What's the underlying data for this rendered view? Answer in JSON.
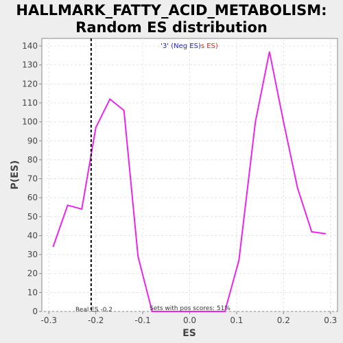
{
  "chart_data": {
    "type": "line",
    "title_line1": "HALLMARK_FATTY_ACID_METABOLISM:",
    "title_line2": "Random ES distribution",
    "xlabel": "ES",
    "ylabel": "P(ES)",
    "xlim": [
      -0.315,
      0.315
    ],
    "ylim": [
      0,
      144
    ],
    "x_ticks": [
      -0.3,
      -0.2,
      -0.1,
      0.0,
      0.1,
      0.2,
      0.3
    ],
    "x_tick_labels": [
      "-0.3",
      "-0.2",
      "-0.1",
      "0.0",
      "0.1",
      "0.2",
      "0.3"
    ],
    "y_ticks": [
      0,
      10,
      20,
      30,
      40,
      50,
      60,
      70,
      80,
      90,
      100,
      110,
      120,
      130,
      140
    ],
    "grid": true,
    "series": [
      {
        "color": "#ee22ee",
        "x": [
          -0.291,
          -0.26,
          -0.23,
          -0.2,
          -0.17,
          -0.14,
          -0.11,
          -0.08,
          -0.05,
          0.0,
          0.05,
          0.075,
          0.105,
          0.14,
          0.17,
          0.2,
          0.23,
          0.26,
          0.29
        ],
        "y": [
          34,
          56,
          54,
          97,
          112,
          106,
          29,
          0,
          0,
          0,
          0,
          0,
          27,
          100,
          137,
          100,
          65,
          42,
          41
        ]
      }
    ],
    "real_es": {
      "x": -0.21,
      "label": "Real ES -0.2",
      "color": "#000000"
    },
    "legend": {
      "part1": "'3' (Neg ES)",
      "part1_color": "#2222cc",
      "part2": "s ES)",
      "part2_color": "#dd2222"
    },
    "footer_text": "Sets with pos scores: 51%"
  }
}
